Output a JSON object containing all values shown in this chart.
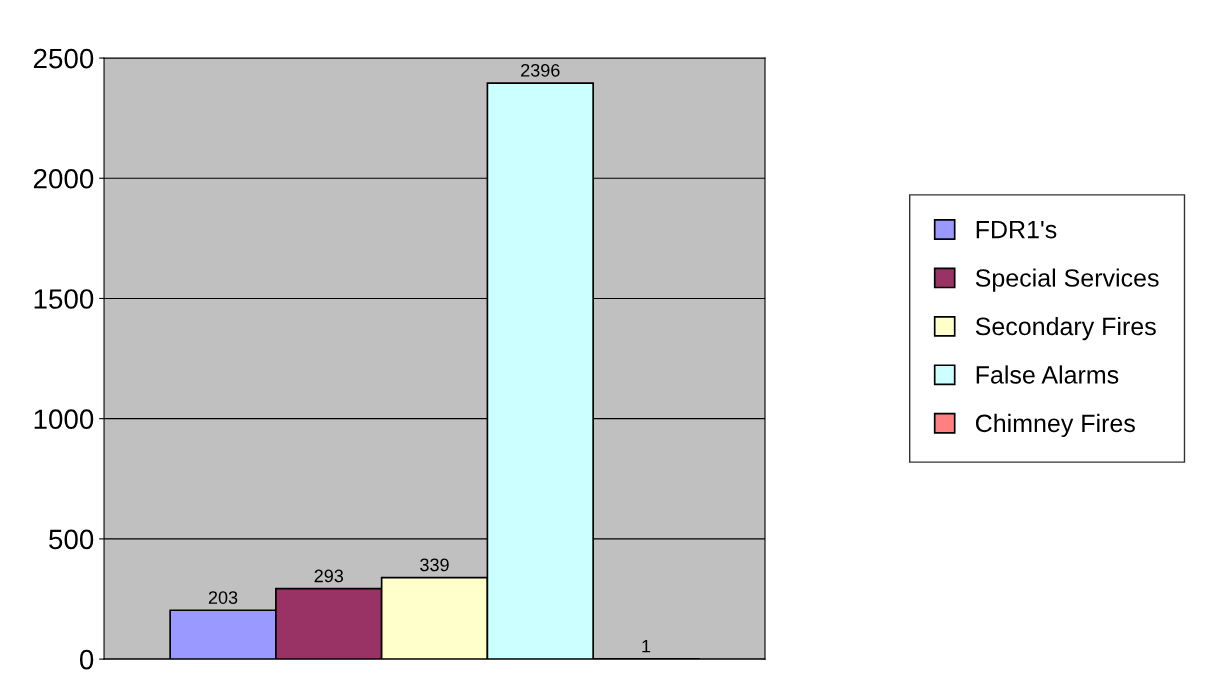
{
  "chart_data": {
    "type": "bar",
    "categories": [
      null
    ],
    "series": [
      {
        "name": "FDR1's",
        "color": "#9999ff",
        "values": [
          203
        ]
      },
      {
        "name": "Special Services",
        "color": "#993366",
        "values": [
          293
        ]
      },
      {
        "name": "Secondary Fires",
        "color": "#ffffcc",
        "values": [
          339
        ]
      },
      {
        "name": "False Alarms",
        "color": "#ccffff",
        "values": [
          2396
        ]
      },
      {
        "name": "Chimney Fires",
        "color": "#ff8080",
        "values": [
          1
        ]
      }
    ],
    "ylim": [
      0,
      2500
    ],
    "yticks": [
      0,
      500,
      1000,
      1500,
      2000,
      2500
    ],
    "grid": "y",
    "legend": "right",
    "data_labels": true,
    "tick_labels": "y"
  }
}
